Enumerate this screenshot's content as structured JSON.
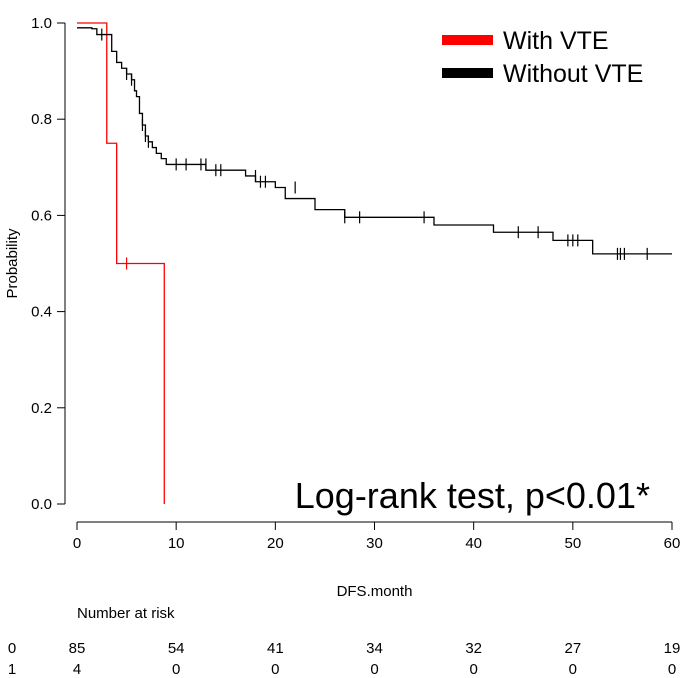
{
  "chart_data": {
    "type": "line",
    "subtype": "kaplan-meier",
    "xlabel": "DFS.month",
    "ylabel": "Probability",
    "xlim": [
      0,
      60
    ],
    "ylim": [
      0,
      1
    ],
    "xticks": [
      0,
      10,
      20,
      30,
      40,
      50,
      60
    ],
    "yticks": [
      "0.0",
      "0.2",
      "0.4",
      "0.6",
      "0.8",
      "1.0"
    ],
    "grid": false,
    "legend": {
      "placement": "top-right"
    },
    "annotation": "Log-rank test, p<0.01*",
    "series": [
      {
        "name": "With VTE",
        "color": "#ff0000",
        "steps": [
          [
            0,
            1.0
          ],
          [
            3,
            0.75
          ],
          [
            4,
            0.5
          ],
          [
            8.8,
            0.0
          ]
        ],
        "end_x": 8.8,
        "censors": [
          [
            5,
            0.5
          ]
        ]
      },
      {
        "name": "Without VTE",
        "color": "#000000",
        "steps": [
          [
            0,
            0.99
          ],
          [
            1.5,
            0.988
          ],
          [
            2,
            0.976
          ],
          [
            3.5,
            0.941
          ],
          [
            4,
            0.918
          ],
          [
            4.5,
            0.906
          ],
          [
            5,
            0.894
          ],
          [
            5.5,
            0.882
          ],
          [
            5.8,
            0.859
          ],
          [
            6,
            0.847
          ],
          [
            6.3,
            0.812
          ],
          [
            6.6,
            0.788
          ],
          [
            6.9,
            0.765
          ],
          [
            7.2,
            0.753
          ],
          [
            7.6,
            0.741
          ],
          [
            8,
            0.729
          ],
          [
            8.5,
            0.718
          ],
          [
            9,
            0.706
          ],
          [
            13,
            0.694
          ],
          [
            17,
            0.682
          ],
          [
            18,
            0.67
          ],
          [
            20,
            0.658
          ],
          [
            21,
            0.635
          ],
          [
            24,
            0.612
          ],
          [
            27,
            0.596
          ],
          [
            36,
            0.58
          ],
          [
            42,
            0.565
          ],
          [
            48,
            0.548
          ],
          [
            52,
            0.52
          ]
        ],
        "end_x": 60,
        "censors": [
          [
            2.5,
            0.976
          ],
          [
            5,
            0.894
          ],
          [
            5.5,
            0.882
          ],
          [
            6.6,
            0.788
          ],
          [
            6.9,
            0.765
          ],
          [
            7.2,
            0.753
          ],
          [
            10,
            0.706
          ],
          [
            11,
            0.706
          ],
          [
            12.5,
            0.706
          ],
          [
            13,
            0.706
          ],
          [
            14,
            0.694
          ],
          [
            14.5,
            0.694
          ],
          [
            18,
            0.682
          ],
          [
            18.5,
            0.67
          ],
          [
            19,
            0.67
          ],
          [
            22,
            0.658
          ],
          [
            27,
            0.596
          ],
          [
            28.5,
            0.596
          ],
          [
            35,
            0.596
          ],
          [
            44.5,
            0.565
          ],
          [
            46.5,
            0.565
          ],
          [
            49.5,
            0.548
          ],
          [
            50,
            0.548
          ],
          [
            50.5,
            0.548
          ],
          [
            54.5,
            0.52
          ],
          [
            54.8,
            0.52
          ],
          [
            55.2,
            0.52
          ],
          [
            57.5,
            0.52
          ]
        ]
      }
    ],
    "risk_table": {
      "title": "Number at risk",
      "times": [
        0,
        10,
        20,
        30,
        40,
        50,
        60
      ],
      "rows": [
        {
          "group": "0",
          "counts": [
            "85",
            "54",
            "41",
            "34",
            "32",
            "27",
            "19"
          ]
        },
        {
          "group": "1",
          "counts": [
            "4",
            "0",
            "0",
            "0",
            "0",
            "0",
            "0"
          ]
        }
      ]
    }
  }
}
